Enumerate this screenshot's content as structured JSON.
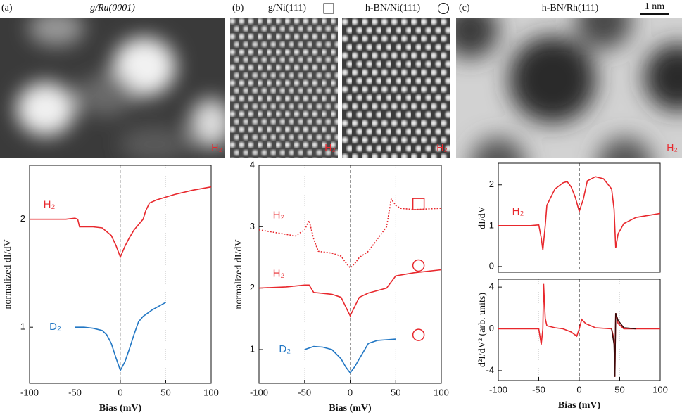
{
  "chart_data": [
    {
      "type": "line",
      "panel": "(a)",
      "image_title": "g/Ru(0001)",
      "image_label": "H₂",
      "xlabel": "Bias (mV)",
      "ylabel": "normalized dI/dV",
      "xlim": [
        -100,
        100
      ],
      "xticks": [
        -100,
        -50,
        0,
        50,
        100
      ],
      "ylim": [
        0.48,
        2.5
      ],
      "yticks": [
        1,
        2
      ],
      "grid": true,
      "zero_line": true,
      "series": [
        {
          "name": "H₂",
          "color": "#e8282d",
          "linestyle": "solid",
          "x": [
            -100,
            -60,
            -50,
            -47,
            -45,
            -30,
            -20,
            -10,
            -5,
            0,
            5,
            10,
            15,
            20,
            25,
            28,
            32,
            40,
            60,
            80,
            100
          ],
          "values": [
            2.0,
            2.0,
            2.01,
            2.0,
            1.93,
            1.93,
            1.92,
            1.85,
            1.76,
            1.65,
            1.75,
            1.83,
            1.9,
            1.95,
            2.0,
            2.08,
            2.15,
            2.18,
            2.23,
            2.27,
            2.3
          ]
        },
        {
          "name": "D₂",
          "color": "#2277c4",
          "linestyle": "solid",
          "x": [
            -50,
            -40,
            -30,
            -20,
            -15,
            -10,
            -5,
            0,
            5,
            10,
            15,
            20,
            25,
            35,
            50
          ],
          "values": [
            1.0,
            1.0,
            0.99,
            0.97,
            0.93,
            0.85,
            0.72,
            0.6,
            0.68,
            0.8,
            0.93,
            1.05,
            1.1,
            1.16,
            1.23
          ]
        }
      ]
    },
    {
      "type": "line",
      "panel": "(b)",
      "image_titles": [
        "g/Ni(111)",
        "h-BN/Ni(111)"
      ],
      "image_label": "H₂",
      "xlabel": "Bias (mV)",
      "ylabel": "normalized dI/dV",
      "xlim": [
        -100,
        100
      ],
      "xticks": [
        -100,
        -50,
        0,
        50,
        100
      ],
      "ylim": [
        0.45,
        4
      ],
      "yticks": [
        1,
        2,
        3,
        4
      ],
      "grid": true,
      "zero_line": true,
      "series": [
        {
          "name": "H₂",
          "color": "#e8282d",
          "linestyle": "dotted",
          "marker": "square",
          "x": [
            -100,
            -80,
            -60,
            -50,
            -45,
            -40,
            -35,
            -20,
            -10,
            -5,
            0,
            5,
            10,
            20,
            30,
            40,
            45,
            50,
            55,
            70,
            100
          ],
          "values": [
            2.95,
            2.9,
            2.85,
            2.95,
            3.1,
            2.8,
            2.6,
            2.57,
            2.52,
            2.42,
            2.33,
            2.4,
            2.5,
            2.6,
            2.8,
            3.0,
            3.45,
            3.35,
            3.3,
            3.28,
            3.3
          ]
        },
        {
          "name": "H₂",
          "color": "#e8282d",
          "linestyle": "solid",
          "marker": "circle",
          "x": [
            -100,
            -70,
            -50,
            -45,
            -40,
            -20,
            -10,
            -5,
            0,
            5,
            10,
            20,
            40,
            45,
            50,
            70,
            100
          ],
          "values": [
            2.0,
            2.02,
            2.05,
            2.05,
            1.93,
            1.9,
            1.85,
            1.7,
            1.55,
            1.7,
            1.85,
            1.92,
            2.0,
            2.1,
            2.2,
            2.25,
            2.3
          ]
        },
        {
          "name": "D₂",
          "color": "#2277c4",
          "linestyle": "solid",
          "marker": "circle",
          "x": [
            -50,
            -40,
            -30,
            -20,
            -10,
            -5,
            0,
            5,
            10,
            20,
            30,
            40,
            50
          ],
          "values": [
            1.0,
            1.05,
            1.04,
            1.0,
            0.85,
            0.72,
            0.62,
            0.72,
            0.85,
            1.1,
            1.15,
            1.16,
            1.17
          ]
        }
      ]
    },
    {
      "type": "line",
      "panel": "(c)",
      "image_title": "h-BN/Rh(111)",
      "image_label": "H₂",
      "scale_bar": "1 nm",
      "ylabel": "dI/dV",
      "xlim": [
        -100,
        100
      ],
      "ylim": [
        -0.14,
        2.53
      ],
      "yticks": [
        0,
        1,
        2
      ],
      "grid": true,
      "zero_line": true,
      "series": [
        {
          "name": "H₂",
          "color": "#e8282d",
          "linestyle": "solid",
          "x": [
            -100,
            -60,
            -50,
            -47,
            -45,
            -42,
            -40,
            -30,
            -20,
            -15,
            -10,
            -5,
            0,
            5,
            10,
            20,
            30,
            40,
            43,
            45,
            48,
            55,
            70,
            100
          ],
          "values": [
            1.0,
            1.0,
            1.02,
            0.7,
            0.4,
            1.0,
            1.5,
            1.9,
            2.05,
            2.08,
            1.95,
            1.7,
            1.35,
            1.65,
            2.1,
            2.2,
            2.15,
            1.9,
            1.4,
            0.45,
            0.8,
            1.05,
            1.2,
            1.3
          ]
        }
      ]
    },
    {
      "type": "line",
      "xlabel": "Bias (mV)",
      "ylabel": "d²I/dV² (arb. units)",
      "xlim": [
        -100,
        100
      ],
      "xticks": [
        -100,
        -50,
        0,
        50,
        100
      ],
      "ylim": [
        -4.95,
        4.75
      ],
      "yticks": [
        -4,
        0,
        4
      ],
      "grid": true,
      "zero_line": true,
      "series": [
        {
          "color": "#e8282d",
          "linestyle": "solid",
          "x": [
            -100,
            -60,
            -50,
            -47,
            -45,
            -44,
            -42,
            -40,
            -30,
            -20,
            -10,
            -3,
            0,
            3,
            8,
            20,
            40,
            43,
            44,
            45,
            48,
            55,
            70,
            100
          ],
          "values": [
            0,
            0,
            0,
            -1.5,
            0,
            4.3,
            1,
            0.3,
            0.1,
            0,
            -0.3,
            -0.7,
            0,
            0.9,
            0.5,
            0.1,
            0,
            -1,
            -4.6,
            1.5,
            0.5,
            0,
            0,
            0
          ]
        },
        {
          "color": "#3a0a0a",
          "linestyle": "solid",
          "x": [
            40,
            43,
            44,
            45,
            48,
            55,
            70
          ],
          "values": [
            0,
            -1.5,
            -4.6,
            1.5,
            0.8,
            0.1,
            0
          ]
        }
      ]
    }
  ]
}
